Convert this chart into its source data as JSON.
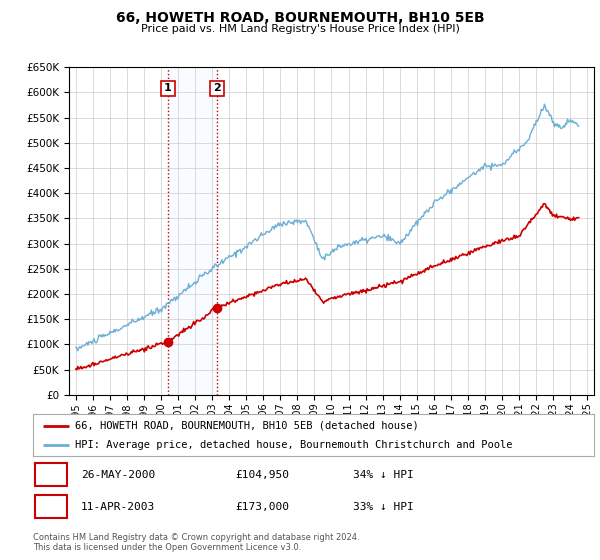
{
  "title": "66, HOWETH ROAD, BOURNEMOUTH, BH10 5EB",
  "subtitle": "Price paid vs. HM Land Registry's House Price Index (HPI)",
  "legend_line1": "66, HOWETH ROAD, BOURNEMOUTH, BH10 5EB (detached house)",
  "legend_line2": "HPI: Average price, detached house, Bournemouth Christchurch and Poole",
  "transaction1_label": "1",
  "transaction1_date": "26-MAY-2000",
  "transaction1_price": "£104,950",
  "transaction1_hpi": "34% ↓ HPI",
  "transaction1_year": 2000.4,
  "transaction1_value": 104950,
  "transaction2_label": "2",
  "transaction2_date": "11-APR-2003",
  "transaction2_price": "£173,000",
  "transaction2_hpi": "33% ↓ HPI",
  "transaction2_year": 2003.28,
  "transaction2_value": 173000,
  "footer_line1": "Contains HM Land Registry data © Crown copyright and database right 2024.",
  "footer_line2": "This data is licensed under the Open Government Licence v3.0.",
  "hpi_color": "#6baed6",
  "price_color": "#cc0000",
  "marker_color": "#cc0000",
  "bg_color": "#ffffff",
  "grid_color": "#cccccc",
  "shade_color": "#ddeeff",
  "ylim": [
    0,
    650000
  ],
  "yticks": [
    0,
    50000,
    100000,
    150000,
    200000,
    250000,
    300000,
    350000,
    400000,
    450000,
    500000,
    550000,
    600000,
    650000
  ],
  "xlim_start": 1994.6,
  "xlim_end": 2025.4
}
